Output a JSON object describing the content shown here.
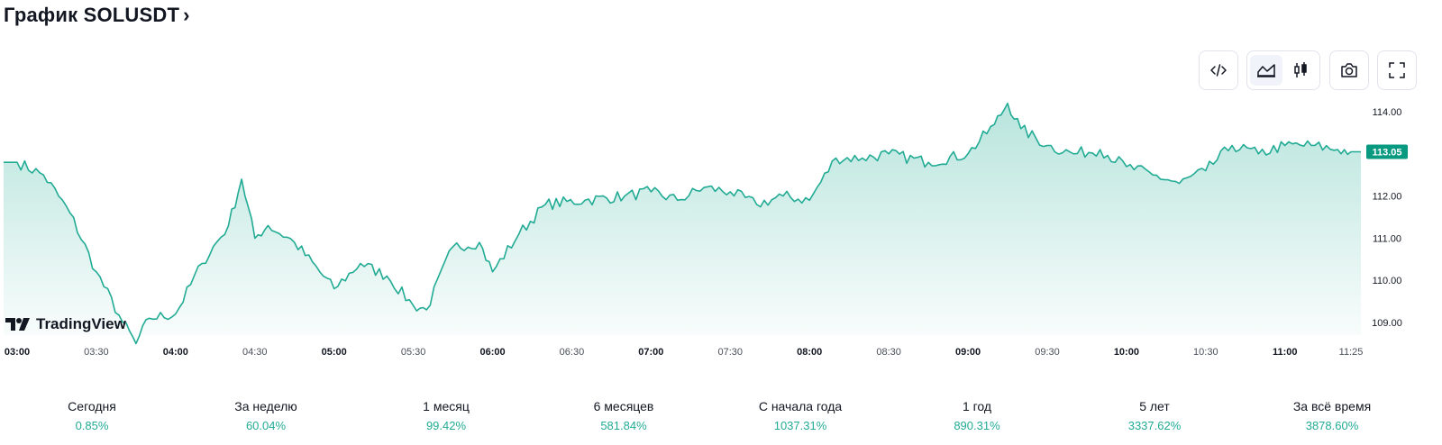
{
  "header": {
    "title": "График SOLUSDT",
    "chevron": "›"
  },
  "toolbar": {
    "buttons": [
      {
        "name": "embed-code-icon"
      },
      {
        "name": "area-chart-icon",
        "active": true
      },
      {
        "name": "candlestick-icon"
      },
      {
        "name": "camera-icon"
      },
      {
        "name": "fullscreen-icon"
      }
    ]
  },
  "logo": {
    "text": "TradingView"
  },
  "colors": {
    "line": "#22ab94",
    "fill": "#22ab94",
    "badge": "#089981",
    "positive": "#22ab94"
  },
  "chart_data": {
    "type": "area",
    "symbol": "SOLUSDT",
    "x_ticks": [
      "03:00",
      "03:30",
      "04:00",
      "04:30",
      "05:00",
      "05:30",
      "06:00",
      "06:30",
      "07:00",
      "07:30",
      "08:00",
      "08:30",
      "09:00",
      "09:30",
      "10:00",
      "10:30",
      "11:00",
      "11:25"
    ],
    "y_ticks": [
      "114.00",
      "112.00",
      "111.00",
      "110.00",
      "109.00"
    ],
    "ylim": [
      108.7,
      114.3
    ],
    "last_price": "113.05",
    "grid": false,
    "x": [
      "03:00",
      "03:10",
      "03:20",
      "03:30",
      "03:40",
      "03:45",
      "03:50",
      "04:00",
      "04:10",
      "04:20",
      "04:25",
      "04:30",
      "04:35",
      "04:45",
      "05:00",
      "05:10",
      "05:20",
      "05:30",
      "05:35",
      "05:45",
      "05:55",
      "06:00",
      "06:10",
      "06:20",
      "06:35",
      "06:50",
      "07:00",
      "07:10",
      "07:20",
      "07:30",
      "07:40",
      "07:50",
      "08:00",
      "08:10",
      "08:20",
      "08:30",
      "08:45",
      "09:00",
      "09:10",
      "09:15",
      "09:20",
      "09:30",
      "09:40",
      "09:50",
      "10:00",
      "10:10",
      "10:20",
      "10:30",
      "10:40",
      "10:50",
      "11:00",
      "11:10",
      "11:20",
      "11:25"
    ],
    "values": [
      112.8,
      112.5,
      111.6,
      110.2,
      109.0,
      108.5,
      109.1,
      109.2,
      110.4,
      111.3,
      112.4,
      111.0,
      111.3,
      110.9,
      109.8,
      110.4,
      110.1,
      109.4,
      109.3,
      110.8,
      110.9,
      110.2,
      111.1,
      111.8,
      111.9,
      112.0,
      112.1,
      111.9,
      112.2,
      112.1,
      111.8,
      112.0,
      111.9,
      112.9,
      112.9,
      113.0,
      112.8,
      113.0,
      113.7,
      114.2,
      113.6,
      113.2,
      113.0,
      113.1,
      112.7,
      112.5,
      112.3,
      112.6,
      113.2,
      113.0,
      113.2,
      113.2,
      113.1,
      113.05
    ]
  },
  "periods": [
    {
      "label": "Сегодня",
      "value": "0.85%",
      "active": true
    },
    {
      "label": "За неделю",
      "value": "60.04%"
    },
    {
      "label": "1 месяц",
      "value": "99.42%"
    },
    {
      "label": "6 месяцев",
      "value": "581.84%"
    },
    {
      "label": "С начала года",
      "value": "1037.31%"
    },
    {
      "label": "1 год",
      "value": "890.31%"
    },
    {
      "label": "5 лет",
      "value": "3337.62%"
    },
    {
      "label": "За всё время",
      "value": "3878.60%"
    }
  ]
}
